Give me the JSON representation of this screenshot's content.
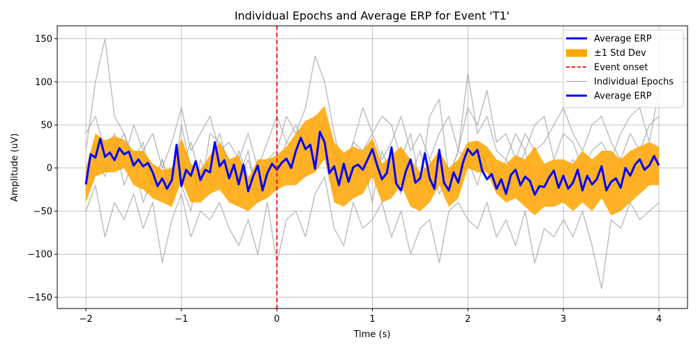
{
  "chart_data": {
    "type": "line",
    "title": "Individual Epochs and Average ERP for Event 'T1'",
    "xlabel": "Time (s)",
    "ylabel": "Amplitude (uV)",
    "xlim": [
      -2.3,
      4.3
    ],
    "ylim": [
      -163,
      165
    ],
    "xticks": [
      -2,
      -1,
      0,
      1,
      2,
      3,
      4
    ],
    "xtick_labels": [
      "−2",
      "−1",
      "0",
      "1",
      "2",
      "3",
      "4"
    ],
    "yticks": [
      -150,
      -100,
      -50,
      0,
      50,
      100,
      150
    ],
    "ytick_labels": [
      "−150",
      "−100",
      "−50",
      "0",
      "50",
      "100",
      "150"
    ],
    "grid": true,
    "legend_position": "top-right",
    "legend": [
      {
        "label": "Average ERP",
        "style": "thick-line",
        "color": "#0000ff"
      },
      {
        "label": "±1 Std Dev",
        "style": "patch",
        "color": "#ffa500"
      },
      {
        "label": "Event onset",
        "style": "dashed-line",
        "color": "#ff0000"
      },
      {
        "label": "Individual Epochs",
        "style": "thin-line",
        "color": "#a0a0a0"
      },
      {
        "label": "Average ERP",
        "style": "thick-line",
        "color": "#0000ff"
      }
    ],
    "event_onset_x": 0,
    "colors": {
      "epochs": "#a9a9a9",
      "std_band": "#ffa500",
      "average": "#0000ff",
      "onset": "#ff0000",
      "grid": "#b0b0b0"
    },
    "average_erp": {
      "name": "Average ERP",
      "x": [
        -2.0,
        -1.95,
        -1.9,
        -1.85,
        -1.8,
        -1.75,
        -1.7,
        -1.65,
        -1.6,
        -1.55,
        -1.5,
        -1.45,
        -1.4,
        -1.35,
        -1.3,
        -1.25,
        -1.2,
        -1.15,
        -1.1,
        -1.05,
        -1.0,
        -0.95,
        -0.9,
        -0.85,
        -0.8,
        -0.75,
        -0.7,
        -0.65,
        -0.6,
        -0.55,
        -0.5,
        -0.45,
        -0.4,
        -0.35,
        -0.3,
        -0.25,
        -0.2,
        -0.15,
        -0.1,
        -0.05,
        0.0,
        0.05,
        0.1,
        0.15,
        0.2,
        0.25,
        0.3,
        0.35,
        0.4,
        0.45,
        0.5,
        0.55,
        0.6,
        0.65,
        0.7,
        0.75,
        0.8,
        0.85,
        0.9,
        0.95,
        1.0,
        1.05,
        1.1,
        1.15,
        1.2,
        1.25,
        1.3,
        1.35,
        1.4,
        1.45,
        1.5,
        1.55,
        1.6,
        1.65,
        1.7,
        1.75,
        1.8,
        1.85,
        1.9,
        1.95,
        2.0,
        2.05,
        2.1,
        2.15,
        2.2,
        2.25,
        2.3,
        2.35,
        2.4,
        2.45,
        2.5,
        2.55,
        2.6,
        2.65,
        2.7,
        2.75,
        2.8,
        2.85,
        2.9,
        2.95,
        3.0,
        3.05,
        3.1,
        3.15,
        3.2,
        3.25,
        3.3,
        3.35,
        3.4,
        3.45,
        3.5,
        3.55,
        3.6,
        3.65,
        3.7,
        3.75,
        3.8,
        3.85,
        3.9,
        3.95,
        4.0
      ],
      "y": [
        -19,
        16,
        12,
        34,
        13,
        18,
        9,
        23,
        16,
        19,
        3,
        10,
        2,
        6,
        -5,
        -21,
        -12,
        -24,
        -14,
        27,
        -21,
        -2,
        -9,
        8,
        -14,
        -2,
        -5,
        30,
        2,
        9,
        -12,
        4,
        -19,
        4,
        -27,
        -10,
        3,
        -26,
        -6,
        5,
        -2,
        6,
        11,
        0,
        20,
        35,
        22,
        27,
        -1,
        42,
        30,
        -6,
        2,
        -20,
        5,
        -16,
        1,
        4,
        -2,
        10,
        22,
        3,
        -13,
        -6,
        24,
        -18,
        -26,
        -4,
        10,
        -17,
        -12,
        17,
        -12,
        -24,
        21,
        -17,
        -26,
        -5,
        -17,
        7,
        22,
        15,
        21,
        -3,
        -13,
        -7,
        -24,
        -13,
        -30,
        -8,
        -2,
        -20,
        -10,
        -15,
        -31,
        -21,
        -22,
        -11,
        -3,
        -23,
        -9,
        -24,
        -17,
        -2,
        -26,
        -9,
        -19,
        -13,
        2,
        -26,
        -16,
        -12,
        -23,
        0,
        -9,
        4,
        10,
        -2,
        3,
        14,
        3
      ]
    },
    "std_band": {
      "name": "±1 Std Dev",
      "x": [
        -2.0,
        -1.9,
        -1.8,
        -1.7,
        -1.6,
        -1.5,
        -1.4,
        -1.3,
        -1.2,
        -1.1,
        -1.0,
        -0.9,
        -0.8,
        -0.7,
        -0.6,
        -0.5,
        -0.4,
        -0.3,
        -0.2,
        -0.1,
        0.0,
        0.1,
        0.2,
        0.3,
        0.4,
        0.5,
        0.6,
        0.7,
        0.8,
        0.9,
        1.0,
        1.1,
        1.2,
        1.3,
        1.4,
        1.5,
        1.6,
        1.7,
        1.8,
        1.9,
        2.0,
        2.1,
        2.2,
        2.3,
        2.4,
        2.5,
        2.6,
        2.7,
        2.8,
        2.9,
        3.0,
        3.1,
        3.2,
        3.3,
        3.4,
        3.5,
        3.6,
        3.7,
        3.8,
        3.9,
        4.0
      ],
      "upper": [
        0,
        40,
        32,
        37,
        33,
        20,
        20,
        5,
        -2,
        0,
        35,
        5,
        -2,
        15,
        30,
        10,
        15,
        -12,
        10,
        10,
        15,
        25,
        40,
        55,
        60,
        72,
        30,
        18,
        25,
        20,
        35,
        5,
        15,
        25,
        10,
        -5,
        5,
        20,
        0,
        10,
        30,
        32,
        25,
        10,
        5,
        15,
        10,
        25,
        5,
        10,
        10,
        5,
        20,
        10,
        20,
        20,
        10,
        20,
        25,
        30,
        25
      ],
      "lower": [
        -40,
        -10,
        -5,
        -5,
        0,
        -20,
        -25,
        -35,
        -40,
        -45,
        -15,
        -40,
        -40,
        -30,
        -25,
        -40,
        -45,
        -50,
        -40,
        -35,
        -25,
        -20,
        -20,
        -10,
        -5,
        10,
        -40,
        -45,
        -35,
        -30,
        -10,
        -40,
        -35,
        -20,
        -45,
        -50,
        -40,
        -20,
        -45,
        -35,
        0,
        -5,
        -5,
        -30,
        -40,
        -35,
        -45,
        -55,
        -45,
        -45,
        -40,
        -50,
        -40,
        -50,
        -35,
        -55,
        -50,
        -40,
        -30,
        -20,
        -20
      ]
    },
    "individual_epochs": [
      {
        "x": [
          -2.0,
          -1.9,
          -1.8,
          -1.7,
          -1.6,
          -1.5,
          -1.4,
          -1.3,
          -1.2,
          -1.1,
          -1.0,
          -0.9,
          -0.8,
          -0.7,
          -0.6,
          -0.5,
          -0.4,
          -0.3,
          -0.2,
          -0.1,
          0.0,
          0.1,
          0.2,
          0.3,
          0.4,
          0.5,
          0.6,
          0.7,
          0.8,
          0.9,
          1.0,
          1.1,
          1.2,
          1.3,
          1.4,
          1.5,
          1.6,
          1.7,
          1.8,
          1.9,
          2.0,
          2.1,
          2.2,
          2.3,
          2.4,
          2.5,
          2.6,
          2.7,
          2.8,
          2.9,
          3.0,
          3.1,
          3.2,
          3.3,
          3.4,
          3.5,
          3.6,
          3.7,
          3.8,
          3.9,
          4.0
        ],
        "y": [
          20,
          100,
          150,
          60,
          40,
          10,
          30,
          -20,
          10,
          -30,
          50,
          0,
          -30,
          40,
          30,
          10,
          -10,
          20,
          -40,
          10,
          20,
          60,
          40,
          70,
          130,
          100,
          40,
          -10,
          30,
          20,
          40,
          60,
          50,
          10,
          40,
          -20,
          60,
          80,
          -10,
          20,
          110,
          40,
          60,
          20,
          10,
          40,
          20,
          50,
          60,
          10,
          40,
          30,
          0,
          20,
          30,
          10,
          40,
          60,
          70,
          30,
          90
        ]
      },
      {
        "x": [
          -2.0,
          -1.9,
          -1.8,
          -1.7,
          -1.6,
          -1.5,
          -1.4,
          -1.3,
          -1.2,
          -1.1,
          -1.0,
          -0.9,
          -0.8,
          -0.7,
          -0.6,
          -0.5,
          -0.4,
          -0.3,
          -0.2,
          -0.1,
          0.0,
          0.1,
          0.2,
          0.3,
          0.4,
          0.5,
          0.6,
          0.7,
          0.8,
          0.9,
          1.0,
          1.1,
          1.2,
          1.3,
          1.4,
          1.5,
          1.6,
          1.7,
          1.8,
          1.9,
          2.0,
          2.1,
          2.2,
          2.3,
          2.4,
          2.5,
          2.6,
          2.7,
          2.8,
          2.9,
          3.0,
          3.1,
          3.2,
          3.3,
          3.4,
          3.5,
          3.6,
          3.7,
          3.8,
          3.9,
          4.0
        ],
        "y": [
          -50,
          -20,
          -80,
          -40,
          -60,
          -30,
          -70,
          -40,
          -110,
          -60,
          -30,
          -80,
          -50,
          -60,
          -40,
          -70,
          -90,
          -60,
          -100,
          -40,
          -110,
          -60,
          -50,
          -80,
          -30,
          -10,
          -70,
          -90,
          -40,
          -70,
          -60,
          -40,
          -80,
          -50,
          -100,
          -70,
          -60,
          -110,
          -50,
          -40,
          -60,
          -70,
          -40,
          -80,
          -60,
          -90,
          -50,
          -110,
          -70,
          -80,
          -60,
          -80,
          -50,
          -90,
          -140,
          -60,
          -70,
          -40,
          -60,
          -50,
          -40
        ]
      },
      {
        "x": [
          -2.0,
          -1.9,
          -1.8,
          -1.7,
          -1.6,
          -1.5,
          -1.4,
          -1.3,
          -1.2,
          -1.1,
          -1.0,
          -0.9,
          -0.8,
          -0.7,
          -0.6,
          -0.5,
          -0.4,
          -0.3,
          -0.2,
          -0.1,
          0.0,
          0.1,
          0.2,
          0.3,
          0.4,
          0.5,
          0.6,
          0.7,
          0.8,
          0.9,
          1.0,
          1.1,
          1.2,
          1.3,
          1.4,
          1.5,
          1.6,
          1.7,
          1.8,
          1.9,
          2.0,
          2.1,
          2.2,
          2.3,
          2.4,
          2.5,
          2.6,
          2.7,
          2.8,
          2.9,
          3.0,
          3.1,
          3.2,
          3.3,
          3.4,
          3.5,
          3.6,
          3.7,
          3.8,
          3.9,
          4.0
        ],
        "y": [
          40,
          60,
          20,
          40,
          10,
          50,
          20,
          40,
          0,
          30,
          70,
          20,
          40,
          60,
          20,
          30,
          10,
          40,
          0,
          30,
          60,
          30,
          50,
          20,
          60,
          40,
          20,
          0,
          30,
          70,
          40,
          10,
          30,
          60,
          20,
          40,
          10,
          40,
          60,
          20,
          70,
          50,
          90,
          30,
          40,
          10,
          40,
          20,
          30,
          50,
          70,
          40,
          20,
          50,
          60,
          30,
          10,
          40,
          20,
          50,
          60
        ]
      },
      {
        "x": [
          -2.0,
          -1.9,
          -1.8,
          -1.7,
          -1.6,
          -1.5,
          -1.4,
          -1.3,
          -1.2,
          -1.1,
          -1.0,
          -0.9,
          -0.8,
          -0.7,
          -0.6,
          -0.5,
          -0.4,
          -0.3,
          -0.2,
          -0.1,
          0.0,
          0.1,
          0.2,
          0.3,
          0.4,
          0.5,
          0.6,
          0.7,
          0.8,
          0.9,
          1.0,
          1.1,
          1.2,
          1.3,
          1.4,
          1.5,
          1.6,
          1.7,
          1.8,
          1.9,
          2.0,
          2.1,
          2.2,
          2.3,
          2.4,
          2.5,
          2.6,
          2.7,
          2.8,
          2.9,
          3.0,
          3.1,
          3.2,
          3.3,
          3.4,
          3.5,
          3.6,
          3.7,
          3.8,
          3.9,
          4.0
        ],
        "y": [
          -20,
          10,
          -10,
          30,
          -20,
          10,
          -40,
          -10,
          -30,
          0,
          -20,
          -50,
          10,
          -20,
          0,
          -30,
          20,
          -10,
          -40,
          0,
          -20,
          20,
          10,
          -10,
          30,
          20,
          -30,
          0,
          -20,
          10,
          -40,
          20,
          -10,
          -30,
          0,
          -20,
          10,
          -30,
          -10,
          0,
          10,
          -20,
          20,
          -10,
          -30,
          0,
          -20,
          -40,
          -10,
          -30,
          0,
          -20,
          -10,
          -30,
          0,
          -10,
          -20,
          0,
          -10,
          10,
          -20
        ]
      },
      {
        "x": [
          -2.0,
          -1.9,
          -1.8,
          -1.7,
          -1.6,
          -1.5,
          -1.4,
          -1.3,
          -1.2,
          -1.1,
          -1.0,
          -0.9,
          -0.8,
          -0.7,
          -0.6,
          -0.5,
          -0.4,
          -0.3,
          -0.2,
          -0.1,
          0.0,
          0.1,
          0.2,
          0.3,
          0.4,
          0.5,
          0.6,
          0.7,
          0.8,
          0.9,
          1.0,
          1.1,
          1.2,
          1.3,
          1.4,
          1.5,
          1.6,
          1.7,
          1.8,
          1.9,
          2.0,
          2.1,
          2.2,
          2.3,
          2.4,
          2.5,
          2.6,
          2.7,
          2.8,
          2.9,
          3.0,
          3.1,
          3.2,
          3.3,
          3.4,
          3.5,
          3.6,
          3.7,
          3.8,
          3.9,
          4.0
        ],
        "y": [
          -10,
          30,
          0,
          20,
          40,
          0,
          20,
          -20,
          10,
          -40,
          0,
          30,
          -10,
          10,
          40,
          0,
          -20,
          10,
          -30,
          10,
          0,
          30,
          20,
          40,
          0,
          60,
          20,
          -20,
          10,
          -10,
          30,
          -20,
          0,
          20,
          -10,
          20,
          -30,
          10,
          -10,
          20,
          10,
          30,
          0,
          -20,
          10,
          -10,
          20,
          -30,
          0,
          -20,
          -10,
          10,
          -20,
          0,
          -10,
          -30,
          10,
          -20,
          0,
          20,
          0
        ]
      }
    ]
  }
}
